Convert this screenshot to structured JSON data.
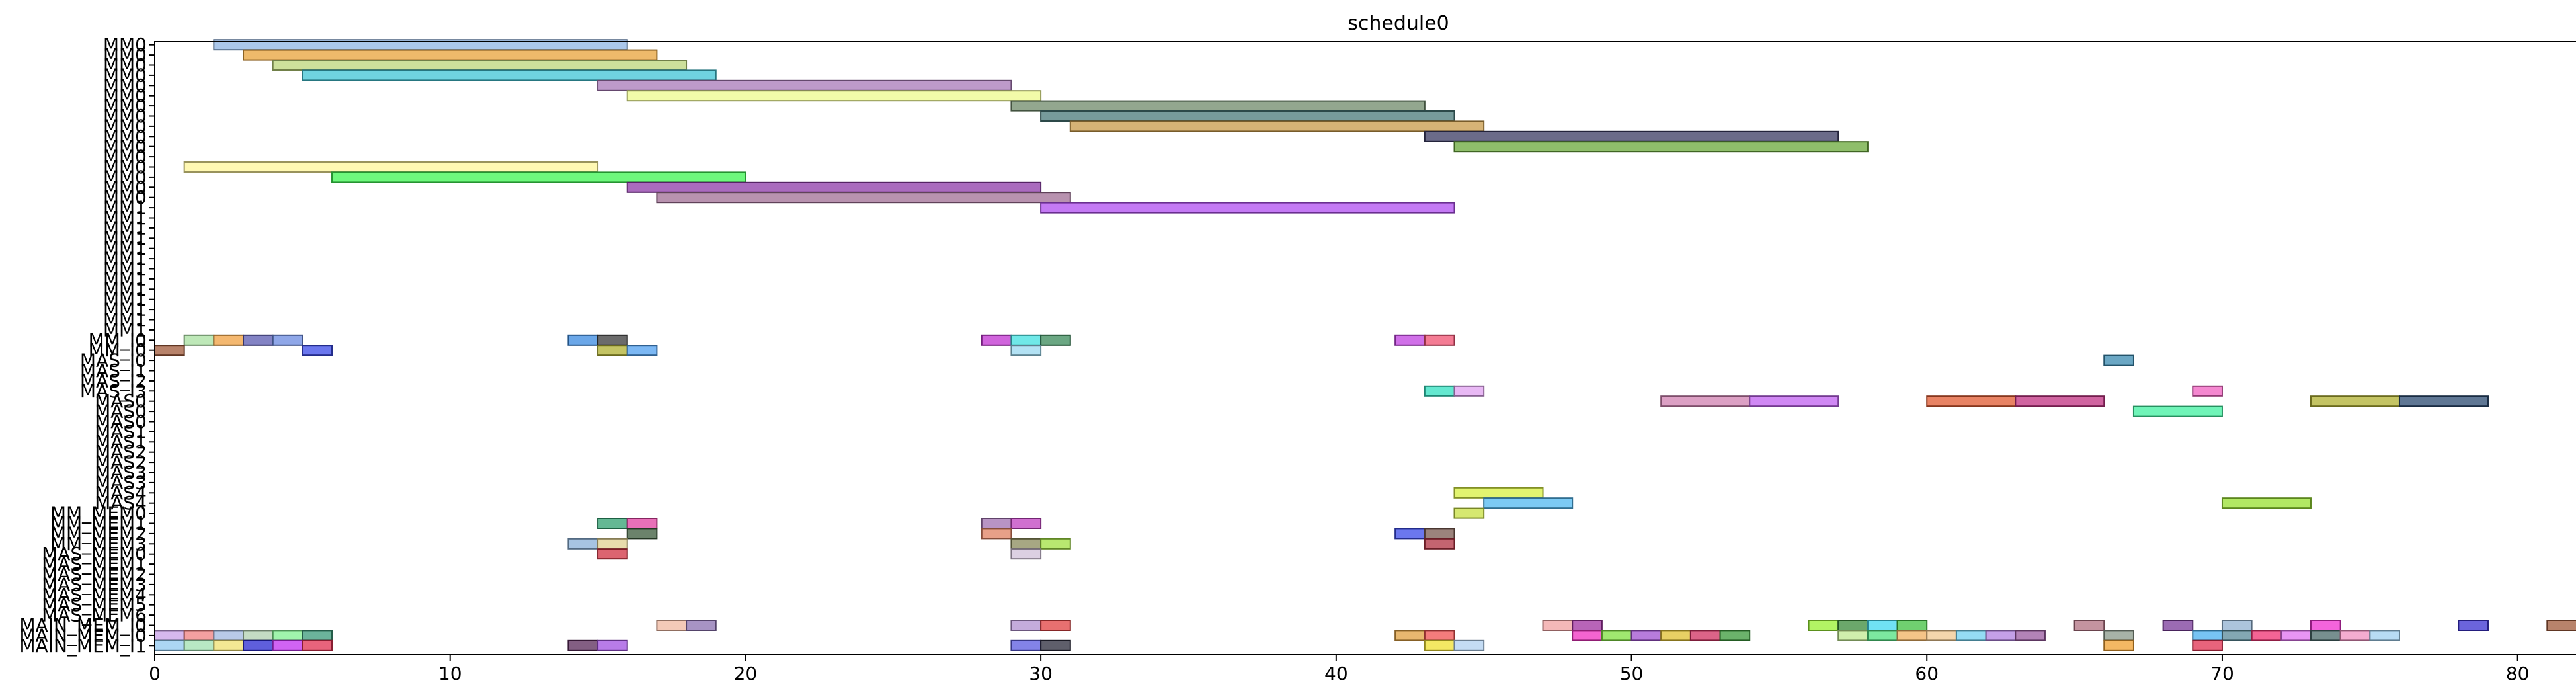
{
  "chart_data": {
    "type": "gantt",
    "title": "schedule0",
    "xlabel": "",
    "ylabel": "",
    "xlim": [
      0,
      82
    ],
    "xticks": [
      0,
      10,
      20,
      30,
      40,
      50,
      60,
      70,
      80
    ],
    "grid": false,
    "rows": [
      "MM0",
      "MM0",
      "MM0",
      "MM0",
      "MM0",
      "MM0",
      "MM0",
      "MM0",
      "MM0",
      "MM0",
      "MM0",
      "MM0",
      "MM0",
      "MM0",
      "MM0",
      "MM0",
      "MM1",
      "MM1",
      "MM1",
      "MM1",
      "MM1",
      "MM1",
      "MM1",
      "MM1",
      "MM1",
      "MM1",
      "MM1",
      "MM1",
      "MM1",
      "MM_I0",
      "MM_I0",
      "MAS_I0",
      "MAS_I1",
      "MAS_I2",
      "MAS_I3",
      "MAS0",
      "MAS0",
      "MAS0",
      "MAS1",
      "MAS1",
      "MAS2",
      "MAS2",
      "MAS3",
      "MAS3",
      "MAS4",
      "MAS4",
      "MM_MEM0",
      "MM_MEM1",
      "MM_MEM2",
      "MM_MEM3",
      "MAS_MEM0",
      "MAS_MEM1",
      "MAS_MEM2",
      "MAS_MEM3",
      "MAS_MEM4",
      "MAS_MEM5",
      "MAS_MEM6",
      "MAIN_MEM_I0",
      "MAIN_MEM_I0",
      "MAIN_MEM_I1"
    ],
    "tasks": [
      {
        "row": 0,
        "start": 2,
        "end": 16,
        "color": "#8fb4e3"
      },
      {
        "row": 1,
        "start": 3,
        "end": 17,
        "color": "#e8a33a"
      },
      {
        "row": 2,
        "start": 4,
        "end": 18,
        "color": "#bcd67a"
      },
      {
        "row": 3,
        "start": 5,
        "end": 19,
        "color": "#3fc4d6"
      },
      {
        "row": 4,
        "start": 15,
        "end": 29,
        "color": "#a878b8"
      },
      {
        "row": 5,
        "start": 16,
        "end": 30,
        "color": "#eef98c"
      },
      {
        "row": 6,
        "start": 29,
        "end": 43,
        "color": "#6f8a6a"
      },
      {
        "row": 7,
        "start": 30,
        "end": 44,
        "color": "#4a7a7a"
      },
      {
        "row": 8,
        "start": 31,
        "end": 45,
        "color": "#c89a48"
      },
      {
        "row": 9,
        "start": 43,
        "end": 57,
        "color": "#3a3a62"
      },
      {
        "row": 10,
        "start": 44,
        "end": 58,
        "color": "#6aa83a"
      },
      {
        "row": 12,
        "start": 1,
        "end": 15,
        "color": "#fff59a"
      },
      {
        "row": 13,
        "start": 6,
        "end": 20,
        "color": "#3ef552"
      },
      {
        "row": 14,
        "start": 16,
        "end": 30,
        "color": "#8e3aa8"
      },
      {
        "row": 15,
        "start": 17,
        "end": 31,
        "color": "#a06e94"
      },
      {
        "row": 16,
        "start": 30,
        "end": 44,
        "color": "#b04ef0"
      },
      {
        "row": 29,
        "start": 1,
        "end": 2,
        "color": "#a8e0a0"
      },
      {
        "row": 29,
        "start": 2,
        "end": 3,
        "color": "#f0a040"
      },
      {
        "row": 29,
        "start": 3,
        "end": 4,
        "color": "#5a5ab0"
      },
      {
        "row": 29,
        "start": 4,
        "end": 5,
        "color": "#6a8ae0"
      },
      {
        "row": 29,
        "start": 14,
        "end": 15,
        "color": "#3a8ae0"
      },
      {
        "row": 29,
        "start": 15,
        "end": 16,
        "color": "#3a3a3a"
      },
      {
        "row": 29,
        "start": 28,
        "end": 29,
        "color": "#c030d0"
      },
      {
        "row": 29,
        "start": 29,
        "end": 30,
        "color": "#40e0e0"
      },
      {
        "row": 29,
        "start": 30,
        "end": 31,
        "color": "#3a8a5a"
      },
      {
        "row": 29,
        "start": 42,
        "end": 43,
        "color": "#c040e0"
      },
      {
        "row": 29,
        "start": 43,
        "end": 44,
        "color": "#f05070"
      },
      {
        "row": 30,
        "start": 0,
        "end": 1,
        "color": "#a05a3a"
      },
      {
        "row": 30,
        "start": 5,
        "end": 6,
        "color": "#3a4ae8"
      },
      {
        "row": 30,
        "start": 15,
        "end": 16,
        "color": "#b0b030"
      },
      {
        "row": 30,
        "start": 16,
        "end": 17,
        "color": "#50a0f0"
      },
      {
        "row": 30,
        "start": 29,
        "end": 30,
        "color": "#9ad8f0"
      },
      {
        "row": 31,
        "start": 66,
        "end": 67,
        "color": "#3a8ab0"
      },
      {
        "row": 34,
        "start": 43,
        "end": 44,
        "color": "#30e0c0"
      },
      {
        "row": 34,
        "start": 44,
        "end": 45,
        "color": "#e0a0f0"
      },
      {
        "row": 34,
        "start": 69,
        "end": 70,
        "color": "#f060c0"
      },
      {
        "row": 35,
        "start": 51,
        "end": 54,
        "color": "#d080b0"
      },
      {
        "row": 35,
        "start": 54,
        "end": 57,
        "color": "#c060f0"
      },
      {
        "row": 35,
        "start": 60,
        "end": 63,
        "color": "#e05a30"
      },
      {
        "row": 35,
        "start": 63,
        "end": 66,
        "color": "#c03080"
      },
      {
        "row": 35,
        "start": 73,
        "end": 76,
        "color": "#b0b030"
      },
      {
        "row": 35,
        "start": 76,
        "end": 79,
        "color": "#2a4a70"
      },
      {
        "row": 36,
        "start": 67,
        "end": 70,
        "color": "#40f0a0"
      },
      {
        "row": 44,
        "start": 44,
        "end": 47,
        "color": "#d8f040"
      },
      {
        "row": 45,
        "start": 45,
        "end": 48,
        "color": "#50b8f0"
      },
      {
        "row": 45,
        "start": 70,
        "end": 73,
        "color": "#98e030"
      },
      {
        "row": 46,
        "start": 44,
        "end": 45,
        "color": "#c8e040"
      },
      {
        "row": 47,
        "start": 15,
        "end": 16,
        "color": "#30a070"
      },
      {
        "row": 47,
        "start": 16,
        "end": 17,
        "color": "#e040a0"
      },
      {
        "row": 47,
        "start": 28,
        "end": 29,
        "color": "#a070b0"
      },
      {
        "row": 47,
        "start": 29,
        "end": 30,
        "color": "#c040c0"
      },
      {
        "row": 48,
        "start": 16,
        "end": 17,
        "color": "#3a5a3a"
      },
      {
        "row": 48,
        "start": 28,
        "end": 29,
        "color": "#e08060"
      },
      {
        "row": 48,
        "start": 42,
        "end": 43,
        "color": "#3a4ae8"
      },
      {
        "row": 48,
        "start": 43,
        "end": 44,
        "color": "#7a5a50"
      },
      {
        "row": 49,
        "start": 14,
        "end": 15,
        "color": "#8ab0d8"
      },
      {
        "row": 49,
        "start": 15,
        "end": 16,
        "color": "#e0d090"
      },
      {
        "row": 49,
        "start": 29,
        "end": 30,
        "color": "#8a8a5a"
      },
      {
        "row": 49,
        "start": 30,
        "end": 31,
        "color": "#a0e040"
      },
      {
        "row": 49,
        "start": 43,
        "end": 44,
        "color": "#b03040"
      },
      {
        "row": 50,
        "start": 15,
        "end": 16,
        "color": "#d03040"
      },
      {
        "row": 50,
        "start": 29,
        "end": 30,
        "color": "#d0c0d8"
      },
      {
        "row": 57,
        "start": 17,
        "end": 18,
        "color": "#f0b8a0"
      },
      {
        "row": 57,
        "start": 18,
        "end": 19,
        "color": "#8a70b0"
      },
      {
        "row": 57,
        "start": 29,
        "end": 30,
        "color": "#b090d0"
      },
      {
        "row": 57,
        "start": 30,
        "end": 31,
        "color": "#e04040"
      },
      {
        "row": 57,
        "start": 47,
        "end": 48,
        "color": "#f0a0a0"
      },
      {
        "row": 57,
        "start": 48,
        "end": 49,
        "color": "#a030a0"
      },
      {
        "row": 57,
        "start": 56,
        "end": 57,
        "color": "#98f030"
      },
      {
        "row": 57,
        "start": 57,
        "end": 58,
        "color": "#3a8a3a"
      },
      {
        "row": 57,
        "start": 58,
        "end": 59,
        "color": "#40d8f0"
      },
      {
        "row": 57,
        "start": 59,
        "end": 60,
        "color": "#40c040"
      },
      {
        "row": 57,
        "start": 65,
        "end": 66,
        "color": "#b07080"
      },
      {
        "row": 57,
        "start": 68,
        "end": 69,
        "color": "#7a3a9a"
      },
      {
        "row": 57,
        "start": 70,
        "end": 71,
        "color": "#90b0d0"
      },
      {
        "row": 57,
        "start": 73,
        "end": 74,
        "color": "#f030d0"
      },
      {
        "row": 57,
        "start": 78,
        "end": 79,
        "color": "#3a30d0"
      },
      {
        "row": 57,
        "start": 81,
        "end": 82,
        "color": "#a05a3a"
      },
      {
        "row": 58,
        "start": 0,
        "end": 1,
        "color": "#c8a0e8"
      },
      {
        "row": 58,
        "start": 1,
        "end": 2,
        "color": "#f08080"
      },
      {
        "row": 58,
        "start": 2,
        "end": 3,
        "color": "#a0b8e0"
      },
      {
        "row": 58,
        "start": 3,
        "end": 4,
        "color": "#b0d0b0"
      },
      {
        "row": 58,
        "start": 4,
        "end": 5,
        "color": "#80f090"
      },
      {
        "row": 58,
        "start": 5,
        "end": 6,
        "color": "#3a9a7a"
      },
      {
        "row": 58,
        "start": 42,
        "end": 43,
        "color": "#e0a040"
      },
      {
        "row": 58,
        "start": 43,
        "end": 44,
        "color": "#f05050"
      },
      {
        "row": 58,
        "start": 48,
        "end": 49,
        "color": "#f030c0"
      },
      {
        "row": 58,
        "start": 49,
        "end": 50,
        "color": "#80e040"
      },
      {
        "row": 58,
        "start": 50,
        "end": 51,
        "color": "#a050d0"
      },
      {
        "row": 58,
        "start": 51,
        "end": 52,
        "color": "#e0c030"
      },
      {
        "row": 58,
        "start": 52,
        "end": 53,
        "color": "#d03060"
      },
      {
        "row": 58,
        "start": 53,
        "end": 54,
        "color": "#3a9a3a"
      },
      {
        "row": 58,
        "start": 57,
        "end": 58,
        "color": "#c0e890"
      },
      {
        "row": 58,
        "start": 58,
        "end": 59,
        "color": "#50e080"
      },
      {
        "row": 58,
        "start": 59,
        "end": 60,
        "color": "#f0b060"
      },
      {
        "row": 58,
        "start": 60,
        "end": 61,
        "color": "#f0c890"
      },
      {
        "row": 58,
        "start": 61,
        "end": 62,
        "color": "#70d0f0"
      },
      {
        "row": 58,
        "start": 62,
        "end": 63,
        "color": "#b080e0"
      },
      {
        "row": 58,
        "start": 63,
        "end": 64,
        "color": "#9a5aa0"
      },
      {
        "row": 58,
        "start": 66,
        "end": 67,
        "color": "#8a9a8a"
      },
      {
        "row": 58,
        "start": 69,
        "end": 70,
        "color": "#4ab0f0"
      },
      {
        "row": 58,
        "start": 70,
        "end": 71,
        "color": "#5a8a9a"
      },
      {
        "row": 58,
        "start": 71,
        "end": 72,
        "color": "#f03070"
      },
      {
        "row": 58,
        "start": 72,
        "end": 73,
        "color": "#e070f0"
      },
      {
        "row": 58,
        "start": 73,
        "end": 74,
        "color": "#4a6a6a"
      },
      {
        "row": 58,
        "start": 74,
        "end": 75,
        "color": "#f090c0"
      },
      {
        "row": 58,
        "start": 75,
        "end": 76,
        "color": "#a0d0f0"
      },
      {
        "row": 59,
        "start": 0,
        "end": 1,
        "color": "#90c8f0"
      },
      {
        "row": 59,
        "start": 1,
        "end": 2,
        "color": "#a0e0b0"
      },
      {
        "row": 59,
        "start": 2,
        "end": 3,
        "color": "#f0e070"
      },
      {
        "row": 59,
        "start": 3,
        "end": 4,
        "color": "#2a2ad0"
      },
      {
        "row": 59,
        "start": 4,
        "end": 5,
        "color": "#c030f0"
      },
      {
        "row": 59,
        "start": 5,
        "end": 6,
        "color": "#e03050"
      },
      {
        "row": 59,
        "start": 14,
        "end": 15,
        "color": "#5a2a5a"
      },
      {
        "row": 59,
        "start": 15,
        "end": 16,
        "color": "#a050e0"
      },
      {
        "row": 59,
        "start": 29,
        "end": 30,
        "color": "#5a5ae0"
      },
      {
        "row": 59,
        "start": 30,
        "end": 31,
        "color": "#2a2a3a"
      },
      {
        "row": 59,
        "start": 43,
        "end": 44,
        "color": "#f0e030"
      },
      {
        "row": 59,
        "start": 44,
        "end": 45,
        "color": "#b0d0f0"
      },
      {
        "row": 59,
        "start": 66,
        "end": 67,
        "color": "#f0a030"
      },
      {
        "row": 59,
        "start": 69,
        "end": 70,
        "color": "#e03050"
      }
    ]
  }
}
